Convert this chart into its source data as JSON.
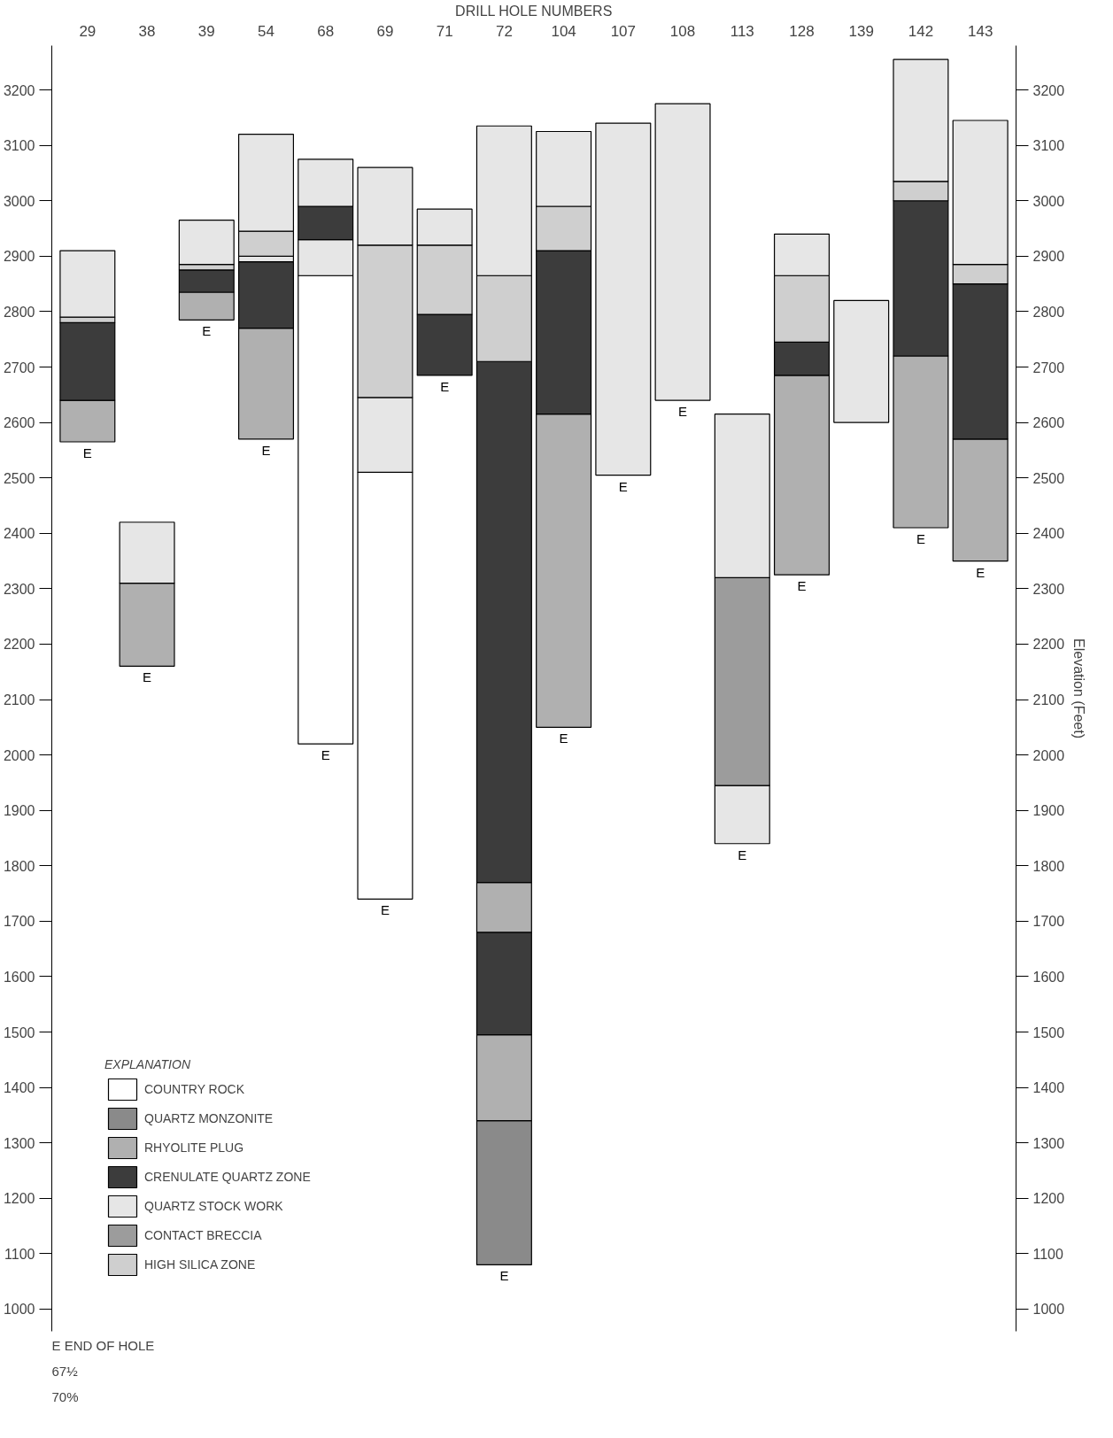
{
  "chart_data": {
    "type": "bar",
    "xlabel": "DRILL HOLE NUMBERS",
    "y2label": "Elevation (Feet)",
    "legend_title": "EXPLANATION",
    "legend": "bottom left",
    "grid": false,
    "categories": [
      "29",
      "38",
      "39",
      "54",
      "68",
      "69",
      "71",
      "72",
      "104",
      "107",
      "108",
      "113",
      "128",
      "139",
      "142",
      "143"
    ],
    "series": [
      {
        "name": "COUNTRY ROCK",
        "color": "#ffffff",
        "base": [
          null,
          null,
          null,
          null,
          2020,
          1740,
          null,
          null,
          null,
          null,
          null,
          null,
          null,
          null,
          null,
          null
        ],
        "values": [
          null,
          null,
          null,
          null,
          845,
          770,
          null,
          null,
          null,
          null,
          null,
          null,
          null,
          null,
          null,
          null
        ]
      },
      {
        "name": "QUARTZ MONZONITE",
        "color": "#8a8a8a",
        "base": [
          null,
          null,
          null,
          null,
          null,
          null,
          null,
          1080,
          null,
          null,
          null,
          null,
          null,
          null,
          null,
          null
        ],
        "values": [
          null,
          null,
          null,
          null,
          null,
          null,
          null,
          260,
          null,
          null,
          null,
          null,
          null,
          null,
          null,
          null
        ]
      },
      {
        "name": "RHYOLITE PLUG",
        "color": "#b0b0b0",
        "base": [
          2565,
          2160,
          2785,
          2570,
          null,
          null,
          null,
          1340,
          2050,
          null,
          null,
          null,
          2325,
          null,
          2410,
          2350
        ],
        "values": [
          75,
          150,
          50,
          200,
          null,
          null,
          null,
          155,
          565,
          null,
          null,
          null,
          360,
          null,
          310,
          220
        ]
      },
      {
        "name": "CRENULATE QUARTZ ZONE",
        "color": "#3c3c3c",
        "base": [
          null,
          null,
          null,
          null,
          null,
          null,
          null,
          1495,
          null,
          null,
          null,
          null,
          null,
          null,
          null,
          null
        ],
        "values": [
          null,
          null,
          null,
          null,
          null,
          null,
          null,
          185,
          null,
          null,
          null,
          null,
          null,
          null,
          null,
          null
        ]
      },
      {
        "color": "#b0b0b0",
        "base": [
          null,
          null,
          null,
          null,
          null,
          null,
          null,
          1680,
          null,
          null,
          null,
          null,
          null,
          null,
          null,
          null
        ],
        "values": [
          null,
          null,
          null,
          null,
          null,
          null,
          null,
          90,
          null,
          null,
          null,
          null,
          null,
          null,
          null,
          null
        ]
      },
      {
        "name": "QUARTZ STOCK WORK",
        "color": "#e6e6e6",
        "base": [
          null,
          null,
          null,
          null,
          2865,
          2510,
          null,
          null,
          null,
          null,
          null,
          1840,
          null,
          null,
          null,
          null
        ],
        "values": [
          null,
          null,
          null,
          null,
          65,
          135,
          null,
          null,
          null,
          null,
          null,
          105,
          null,
          null,
          null,
          null
        ]
      },
      {
        "name": "CONTACT BRECCIA",
        "color": "#9c9c9c",
        "base": [
          null,
          null,
          null,
          null,
          null,
          null,
          null,
          null,
          null,
          null,
          null,
          1945,
          null,
          null,
          null,
          null
        ],
        "values": [
          null,
          null,
          null,
          null,
          null,
          null,
          null,
          null,
          null,
          null,
          null,
          375,
          null,
          null,
          null,
          null
        ]
      },
      {
        "name": "HIGH SILICA ZONE",
        "color": "#cfcfcf",
        "base": [
          null,
          null,
          null,
          null,
          null,
          2645,
          null,
          null,
          null,
          null,
          null,
          null,
          null,
          null,
          null,
          null
        ],
        "values": [
          null,
          null,
          null,
          null,
          null,
          275,
          null,
          null,
          null,
          null,
          null,
          null,
          null,
          null,
          null,
          null
        ]
      },
      {
        "color": "#3c3c3c",
        "base": [
          2640,
          null,
          2835,
          2770,
          2930,
          null,
          2685,
          1770,
          2615,
          null,
          null,
          null,
          2685,
          null,
          2720,
          2570
        ],
        "values": [
          140,
          null,
          40,
          120,
          60,
          null,
          110,
          940,
          295,
          null,
          null,
          null,
          60,
          null,
          280,
          280
        ]
      },
      {
        "color": "#e6e6e6",
        "base": [
          null,
          null,
          null,
          2890,
          null,
          null,
          null,
          null,
          null,
          null,
          null,
          null,
          null,
          null,
          null,
          null
        ],
        "values": [
          null,
          null,
          null,
          10,
          null,
          null,
          null,
          null,
          null,
          null,
          null,
          null,
          null,
          null,
          null,
          null
        ]
      },
      {
        "color": "#cfcfcf",
        "base": [
          2780,
          null,
          2875,
          2900,
          null,
          null,
          2795,
          2710,
          2910,
          null,
          null,
          null,
          2745,
          null,
          3000,
          2850
        ],
        "values": [
          10,
          null,
          10,
          45,
          null,
          null,
          125,
          155,
          80,
          null,
          null,
          null,
          120,
          null,
          35,
          35
        ]
      },
      {
        "color": "#e6e6e6",
        "base": [
          2790,
          2310,
          2885,
          2945,
          2990,
          2920,
          2920,
          2865,
          2990,
          2505,
          2640,
          2320,
          2865,
          2600,
          3035,
          2885
        ],
        "values": [
          120,
          110,
          80,
          175,
          85,
          140,
          65,
          270,
          135,
          635,
          535,
          295,
          75,
          220,
          220,
          260
        ]
      }
    ],
    "ylim": [
      960,
      3280
    ],
    "yticks": [
      1000,
      1100,
      1200,
      1300,
      1400,
      1500,
      1600,
      1700,
      1800,
      1900,
      2000,
      2100,
      2200,
      2300,
      2400,
      2500,
      2600,
      2700,
      2800,
      2900,
      3000,
      3100,
      3200
    ],
    "y2lim": [
      960,
      3280
    ],
    "y2ticks": [
      1000,
      1100,
      1200,
      1300,
      1400,
      1500,
      1600,
      1700,
      1800,
      1900,
      2000,
      2100,
      2200,
      2300,
      2400,
      2500,
      2600,
      2700,
      2800,
      2900,
      3000,
      3100,
      3200
    ],
    "annotations": [
      {
        "text": "E",
        "x": "29",
        "y": 2565
      },
      {
        "text": "E",
        "x": "38",
        "y": 2160
      },
      {
        "text": "E",
        "x": "39",
        "y": 2785
      },
      {
        "text": "E",
        "x": "54",
        "y": 2570
      },
      {
        "text": "E",
        "x": "68",
        "y": 2020
      },
      {
        "text": "E",
        "x": "69",
        "y": 1740
      },
      {
        "text": "E",
        "x": "71",
        "y": 2685
      },
      {
        "text": "E",
        "x": "72",
        "y": 1080
      },
      {
        "text": "E",
        "x": "104",
        "y": 2050
      },
      {
        "text": "E",
        "x": "107",
        "y": 2505
      },
      {
        "text": "E",
        "x": "108",
        "y": 2640
      },
      {
        "text": "E",
        "x": "113",
        "y": 1840
      },
      {
        "text": "E",
        "x": "128",
        "y": 2325
      },
      {
        "text": "E",
        "x": "142",
        "y": 2410
      },
      {
        "text": "E",
        "x": "143",
        "y": 2350
      },
      "E END OF HOLE",
      "67½",
      "70%"
    ]
  }
}
